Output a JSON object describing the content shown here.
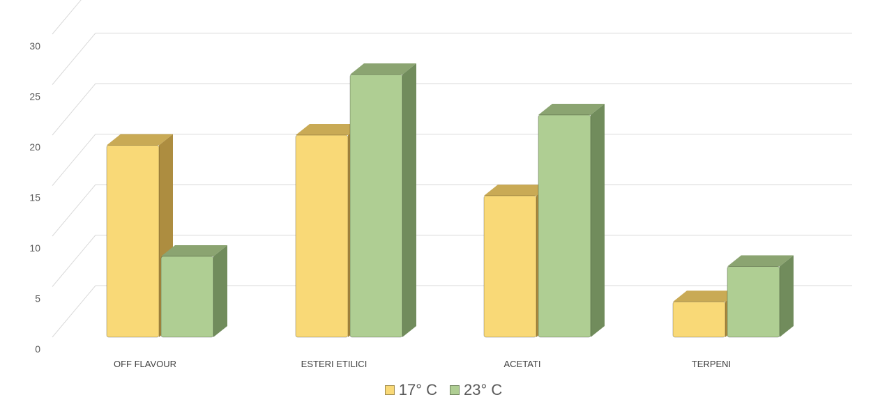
{
  "chart_data": {
    "type": "bar",
    "categories": [
      "OFF FLAVOUR",
      "ESTERI ETILICI",
      "ACETATI",
      "TERPENI"
    ],
    "series": [
      {
        "name": "17° C",
        "values": [
          19,
          20,
          14,
          3.5
        ],
        "color": "#F9D977",
        "side": "#AD8D40",
        "top": "#C9AA55"
      },
      {
        "name": "23° C",
        "values": [
          8,
          26,
          22,
          7
        ],
        "color": "#AFCE93",
        "side": "#718C5C",
        "top": "#8BA471"
      }
    ],
    "y_ticks": [
      "0",
      "5",
      "10",
      "15",
      "20",
      "25",
      "30"
    ],
    "ylim": [
      0,
      30
    ],
    "grid": true,
    "legend": "bottom",
    "title": "",
    "xlabel": "",
    "ylabel": ""
  }
}
